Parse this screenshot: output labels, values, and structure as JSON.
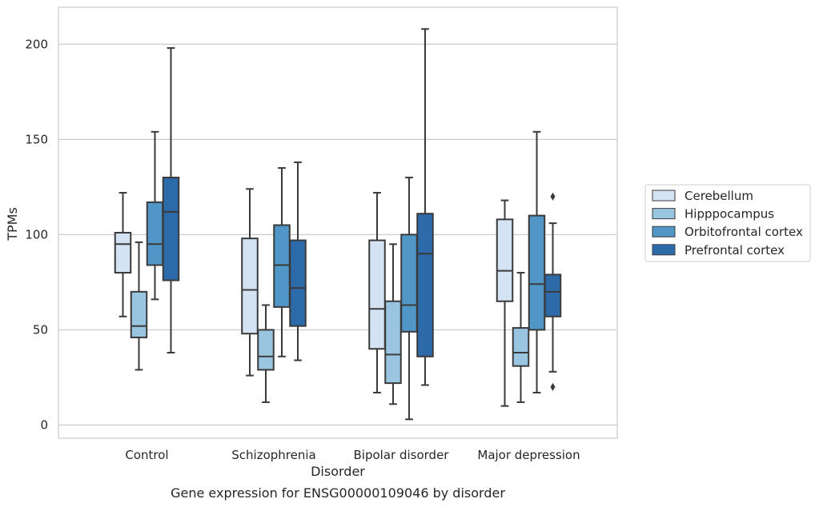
{
  "caption": "Gene expression for ENSG00000109046 by disorder",
  "chart_data": {
    "type": "box",
    "xlabel": "Disorder",
    "ylabel": "TPMs",
    "ylim": [
      -6,
      220
    ],
    "yticks": [
      0,
      50,
      100,
      150,
      200
    ],
    "categories": [
      "Control",
      "Schizophrenia",
      "Bipolar disorder",
      "Major depression"
    ],
    "grid": "horizontal",
    "legend_position": "right",
    "series": [
      {
        "name": "Cerebellum",
        "color": "#d4e3f3",
        "boxes": [
          {
            "whisker_low": 57,
            "q1": 80,
            "median": 95,
            "q3": 101,
            "whisker_high": 122,
            "outliers": []
          },
          {
            "whisker_low": 26,
            "q1": 48,
            "median": 71,
            "q3": 98,
            "whisker_high": 124,
            "outliers": []
          },
          {
            "whisker_low": 17,
            "q1": 40,
            "median": 61,
            "q3": 97,
            "whisker_high": 122,
            "outliers": []
          },
          {
            "whisker_low": 10,
            "q1": 65,
            "median": 81,
            "q3": 108,
            "whisker_high": 118,
            "outliers": []
          }
        ]
      },
      {
        "name": "Hipppocampus",
        "color": "#9ac5e0",
        "boxes": [
          {
            "whisker_low": 29,
            "q1": 46,
            "median": 52,
            "q3": 70,
            "whisker_high": 96,
            "outliers": []
          },
          {
            "whisker_low": 12,
            "q1": 29,
            "median": 36,
            "q3": 50,
            "whisker_high": 63,
            "outliers": []
          },
          {
            "whisker_low": 11,
            "q1": 22,
            "median": 37,
            "q3": 65,
            "whisker_high": 95,
            "outliers": []
          },
          {
            "whisker_low": 12,
            "q1": 31,
            "median": 38,
            "q3": 51,
            "whisker_high": 80,
            "outliers": []
          }
        ]
      },
      {
        "name": "Orbitofrontal cortex",
        "color": "#5097c8",
        "boxes": [
          {
            "whisker_low": 66,
            "q1": 84,
            "median": 95,
            "q3": 117,
            "whisker_high": 154,
            "outliers": []
          },
          {
            "whisker_low": 36,
            "q1": 62,
            "median": 84,
            "q3": 105,
            "whisker_high": 135,
            "outliers": []
          },
          {
            "whisker_low": 3,
            "q1": 49,
            "median": 63,
            "q3": 100,
            "whisker_high": 130,
            "outliers": []
          },
          {
            "whisker_low": 17,
            "q1": 50,
            "median": 74,
            "q3": 110,
            "whisker_high": 154,
            "outliers": []
          }
        ]
      },
      {
        "name": "Prefrontal cortex",
        "color": "#2c6aa9",
        "boxes": [
          {
            "whisker_low": 38,
            "q1": 76,
            "median": 112,
            "q3": 130,
            "whisker_high": 198,
            "outliers": []
          },
          {
            "whisker_low": 34,
            "q1": 52,
            "median": 72,
            "q3": 97,
            "whisker_high": 138,
            "outliers": []
          },
          {
            "whisker_low": 21,
            "q1": 36,
            "median": 90,
            "q3": 111,
            "whisker_high": 208,
            "outliers": []
          },
          {
            "whisker_low": 28,
            "q1": 57,
            "median": 70,
            "q3": 79,
            "whisker_high": 106,
            "outliers": [
              120,
              20
            ]
          }
        ]
      }
    ]
  }
}
